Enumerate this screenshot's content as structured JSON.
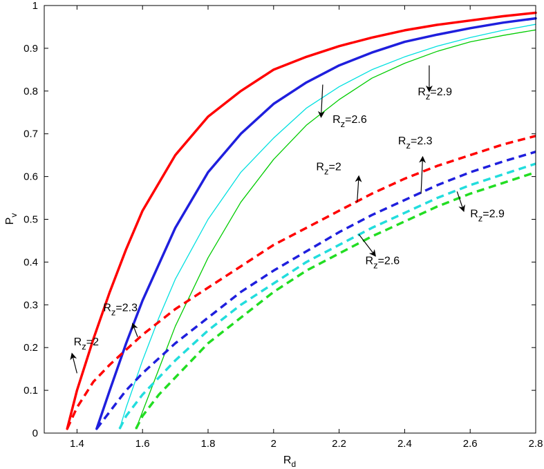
{
  "chart_data": {
    "type": "line",
    "xlabel": {
      "main": "R",
      "sub": "d"
    },
    "ylabel": {
      "main": "P",
      "sub": "v"
    },
    "xlim": [
      1.3,
      2.8
    ],
    "ylim": [
      0,
      1
    ],
    "xticks": [
      1.4,
      1.6,
      1.8,
      2,
      2.2,
      2.4,
      2.6,
      2.8
    ],
    "xtick_labels": [
      "1.4",
      "1.6",
      "1.8",
      "2",
      "2.2",
      "2.4",
      "2.6",
      "2.8"
    ],
    "yticks": [
      0,
      0.1,
      0.2,
      0.3,
      0.4,
      0.5,
      0.6,
      0.7,
      0.8,
      0.9,
      1
    ],
    "ytick_labels": [
      "0",
      "0.1",
      "0.2",
      "0.3",
      "0.4",
      "0.5",
      "0.6",
      "0.7",
      "0.8",
      "0.9",
      "1"
    ],
    "grid": false,
    "box": true,
    "series": [
      {
        "color": "#ff0000",
        "style": "solid",
        "width": 3.5,
        "rz": "2",
        "x": [
          1.37,
          1.4,
          1.45,
          1.5,
          1.55,
          1.6,
          1.7,
          1.8,
          1.9,
          2.0,
          2.1,
          2.2,
          2.3,
          2.4,
          2.5,
          2.6,
          2.7,
          2.8
        ],
        "y": [
          0.01,
          0.1,
          0.22,
          0.33,
          0.43,
          0.52,
          0.65,
          0.74,
          0.8,
          0.85,
          0.88,
          0.905,
          0.925,
          0.942,
          0.955,
          0.965,
          0.975,
          0.983
        ]
      },
      {
        "color": "#1f1fdd",
        "style": "solid",
        "width": 3.5,
        "rz": "2.3",
        "x": [
          1.46,
          1.5,
          1.55,
          1.6,
          1.7,
          1.8,
          1.9,
          2.0,
          2.1,
          2.2,
          2.3,
          2.4,
          2.5,
          2.6,
          2.7,
          2.8
        ],
        "y": [
          0.01,
          0.1,
          0.21,
          0.31,
          0.48,
          0.61,
          0.7,
          0.77,
          0.82,
          0.86,
          0.89,
          0.915,
          0.932,
          0.947,
          0.96,
          0.97
        ]
      },
      {
        "color": "#00e0e0",
        "style": "solid",
        "width": 1.3,
        "rz": "2.6",
        "x": [
          1.53,
          1.55,
          1.6,
          1.65,
          1.7,
          1.8,
          1.9,
          2.0,
          2.1,
          2.2,
          2.3,
          2.4,
          2.5,
          2.6,
          2.7,
          2.8
        ],
        "y": [
          0.01,
          0.06,
          0.17,
          0.27,
          0.36,
          0.5,
          0.61,
          0.69,
          0.76,
          0.81,
          0.85,
          0.88,
          0.905,
          0.925,
          0.942,
          0.956
        ]
      },
      {
        "color": "#00cc00",
        "style": "solid",
        "width": 1.3,
        "rz": "2.9",
        "x": [
          1.58,
          1.6,
          1.65,
          1.7,
          1.8,
          1.9,
          2.0,
          2.1,
          2.2,
          2.3,
          2.4,
          2.5,
          2.6,
          2.7,
          2.8
        ],
        "y": [
          0.01,
          0.05,
          0.15,
          0.25,
          0.41,
          0.54,
          0.64,
          0.72,
          0.78,
          0.83,
          0.865,
          0.893,
          0.915,
          0.93,
          0.943
        ]
      },
      {
        "color": "#ff0000",
        "style": "dashed",
        "width": 3.5,
        "rz": "2",
        "x": [
          1.37,
          1.4,
          1.45,
          1.5,
          1.6,
          1.7,
          1.8,
          1.9,
          2.0,
          2.1,
          2.2,
          2.3,
          2.4,
          2.5,
          2.6,
          2.7,
          2.8
        ],
        "y": [
          0.01,
          0.06,
          0.12,
          0.16,
          0.23,
          0.29,
          0.34,
          0.39,
          0.44,
          0.48,
          0.52,
          0.56,
          0.595,
          0.625,
          0.65,
          0.675,
          0.695
        ]
      },
      {
        "color": "#1f1fdd",
        "style": "dashed",
        "width": 3.5,
        "rz": "2.3",
        "x": [
          1.46,
          1.5,
          1.55,
          1.6,
          1.7,
          1.8,
          1.9,
          2.0,
          2.1,
          2.2,
          2.3,
          2.4,
          2.5,
          2.6,
          2.7,
          2.8
        ],
        "y": [
          0.01,
          0.05,
          0.1,
          0.14,
          0.21,
          0.27,
          0.33,
          0.38,
          0.425,
          0.47,
          0.51,
          0.545,
          0.58,
          0.61,
          0.635,
          0.658
        ]
      },
      {
        "color": "#22dddd",
        "style": "dashed",
        "width": 3.5,
        "rz": "2.6",
        "x": [
          1.53,
          1.55,
          1.6,
          1.7,
          1.8,
          1.9,
          2.0,
          2.1,
          2.2,
          2.3,
          2.4,
          2.5,
          2.6,
          2.7,
          2.8
        ],
        "y": [
          0.01,
          0.04,
          0.09,
          0.17,
          0.24,
          0.3,
          0.35,
          0.4,
          0.44,
          0.48,
          0.515,
          0.55,
          0.58,
          0.605,
          0.63
        ]
      },
      {
        "color": "#22dd22",
        "style": "dashed",
        "width": 3.5,
        "rz": "2.9",
        "x": [
          1.58,
          1.6,
          1.65,
          1.7,
          1.8,
          1.9,
          2.0,
          2.1,
          2.2,
          2.3,
          2.4,
          2.5,
          2.6,
          2.7,
          2.8
        ],
        "y": [
          0.01,
          0.04,
          0.09,
          0.13,
          0.21,
          0.27,
          0.33,
          0.38,
          0.42,
          0.46,
          0.495,
          0.53,
          0.56,
          0.585,
          0.61
        ]
      }
    ],
    "annotations": [
      {
        "main": "R",
        "sub": "z",
        "rest": "=2",
        "x": 1.39,
        "y": 0.205,
        "ax": 1.4,
        "ay": 0.14,
        "hx": 1.385,
        "hy": 0.185
      },
      {
        "main": "R",
        "sub": "z",
        "rest": "=2.3",
        "x": 1.48,
        "y": 0.285,
        "ax": 1.585,
        "ay": 0.225,
        "hx": 1.57,
        "hy": 0.255
      },
      {
        "main": "R",
        "sub": "z",
        "rest": "=2.6",
        "x": 2.18,
        "y": 0.725,
        "ax": 2.15,
        "ay": 0.815,
        "hx": 2.145,
        "hy": 0.74
      },
      {
        "main": "R",
        "sub": "z",
        "rest": "=2.9",
        "x": 2.44,
        "y": 0.79,
        "ax": 2.475,
        "ay": 0.86,
        "hx": 2.475,
        "hy": 0.8
      },
      {
        "main": "R",
        "sub": "z",
        "rest": "=2",
        "x": 2.13,
        "y": 0.615,
        "ax": 2.255,
        "ay": 0.54,
        "hx": 2.26,
        "hy": 0.6
      },
      {
        "main": "R",
        "sub": "z",
        "rest": "=2.3",
        "x": 2.38,
        "y": 0.675,
        "ax": 2.45,
        "ay": 0.56,
        "hx": 2.455,
        "hy": 0.645
      },
      {
        "main": "R",
        "sub": "z",
        "rest": "=2.6",
        "x": 2.28,
        "y": 0.395,
        "ax": 2.26,
        "ay": 0.465,
        "hx": 2.31,
        "hy": 0.415
      },
      {
        "main": "R",
        "sub": "z",
        "rest": "=2.9",
        "x": 2.6,
        "y": 0.505,
        "ax": 2.56,
        "ay": 0.565,
        "hx": 2.58,
        "hy": 0.52
      }
    ]
  }
}
